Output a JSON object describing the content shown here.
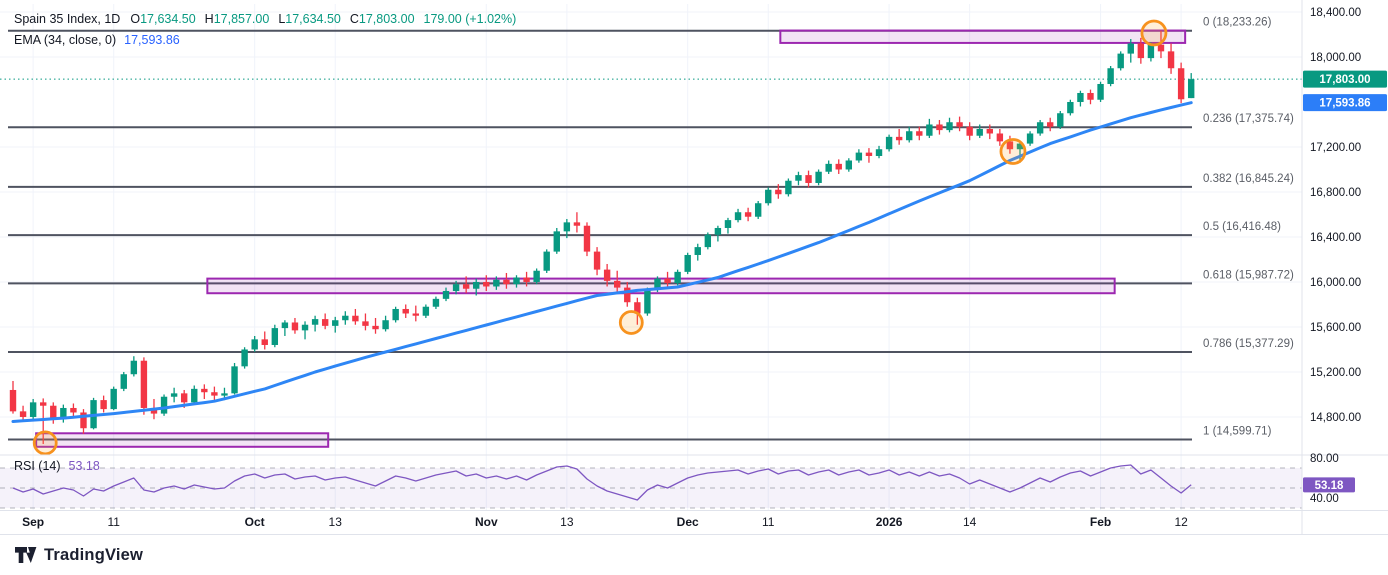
{
  "legend": {
    "title": "Spain 35 Index, 1D",
    "ohlc": [
      {
        "key": "O",
        "value": "17,634.50"
      },
      {
        "key": "H",
        "value": "17,857.00"
      },
      {
        "key": "L",
        "value": "17,634.50"
      },
      {
        "key": "C",
        "value": "17,803.00"
      }
    ],
    "change": "179.00 (+1.02%)",
    "ema_label": "EMA (34, close, 0)",
    "ema_value": "17,593.86",
    "rsi_label": "RSI (14)",
    "rsi_value": "53.18"
  },
  "watermark": {
    "brand": "TradingView"
  },
  "chart_data": {
    "type": "candlestick",
    "title": "Spain 35 Index, 1D",
    "legend_position": "top-left",
    "grid": true,
    "price_axis": {
      "ylim": [
        14462,
        18471
      ],
      "ticks": [
        {
          "label": "18,400.00",
          "value": 18400
        },
        {
          "label": "18,000.00",
          "value": 18000
        },
        {
          "label": "17,200.00",
          "value": 17200
        },
        {
          "label": "16,800.00",
          "value": 16800
        },
        {
          "label": "16,400.00",
          "value": 16400
        },
        {
          "label": "16,000.00",
          "value": 16000
        },
        {
          "label": "15,600.00",
          "value": 15600
        },
        {
          "label": "15,200.00",
          "value": 15200
        },
        {
          "label": "14,800.00",
          "value": 14800
        }
      ]
    },
    "badges": {
      "last_price": {
        "text": "17,803.00",
        "value": 17803
      },
      "ema": {
        "text": "17,593.86",
        "value": 17593.86
      },
      "rsi": {
        "text": "53.18",
        "value": 53.18
      }
    },
    "time_axis": {
      "labels": [
        {
          "text": "Sep",
          "i": 2,
          "major": true
        },
        {
          "text": "11",
          "i": 10,
          "major": false
        },
        {
          "text": "Oct",
          "i": 24,
          "major": true
        },
        {
          "text": "13",
          "i": 32,
          "major": false
        },
        {
          "text": "Nov",
          "i": 47,
          "major": true
        },
        {
          "text": "13",
          "i": 55,
          "major": false
        },
        {
          "text": "Dec",
          "i": 67,
          "major": true
        },
        {
          "text": "11",
          "i": 75,
          "major": false
        },
        {
          "text": "2026",
          "i": 87,
          "major": true
        },
        {
          "text": "14",
          "i": 95,
          "major": false
        },
        {
          "text": "Feb",
          "i": 108,
          "major": true
        },
        {
          "text": "12",
          "i": 116,
          "major": false
        }
      ]
    },
    "fib_levels": [
      {
        "label": "0 (18,233.26)",
        "price": 18233.26
      },
      {
        "label": "0.236 (17,375.74)",
        "price": 17375.74
      },
      {
        "label": "0.382 (16,845.24)",
        "price": 16845.24
      },
      {
        "label": "0.5 (16,416.48)",
        "price": 16416.48
      },
      {
        "label": "0.618 (15,987.72)",
        "price": 15987.72
      },
      {
        "label": "0.786 (15,377.29)",
        "price": 15377.29
      },
      {
        "label": "1 (14,599.71)",
        "price": 14599.71
      }
    ],
    "zones": [
      {
        "i1": 2.3,
        "i2": 31.3,
        "top": 14655,
        "bottom": 14535
      },
      {
        "i1": 19.3,
        "i2": 109.4,
        "top": 16030,
        "bottom": 15900
      },
      {
        "i1": 76.2,
        "i2": 116.4,
        "top": 18235,
        "bottom": 18125
      }
    ],
    "circles": [
      {
        "i": 3.2,
        "price": 14570,
        "r": 11
      },
      {
        "i": 61.4,
        "price": 15640,
        "r": 11
      },
      {
        "i": 99.3,
        "price": 17160,
        "r": 12
      },
      {
        "i": 113.3,
        "price": 18213,
        "r": 12
      }
    ],
    "candles": [
      [
        15040,
        15120,
        14830,
        14850
      ],
      [
        14850,
        14900,
        14760,
        14800
      ],
      [
        14800,
        14960,
        14780,
        14930
      ],
      [
        14930,
        14965,
        14560,
        14900
      ],
      [
        14900,
        14930,
        14740,
        14780
      ],
      [
        14780,
        14910,
        14750,
        14880
      ],
      [
        14880,
        14920,
        14790,
        14840
      ],
      [
        14840,
        14870,
        14650,
        14700
      ],
      [
        14700,
        14970,
        14690,
        14950
      ],
      [
        14950,
        14990,
        14840,
        14870
      ],
      [
        14870,
        15070,
        14860,
        15050
      ],
      [
        15050,
        15200,
        15030,
        15180
      ],
      [
        15180,
        15340,
        15160,
        15300
      ],
      [
        15300,
        15330,
        14820,
        14880
      ],
      [
        14880,
        14960,
        14780,
        14830
      ],
      [
        14830,
        15000,
        14810,
        14980
      ],
      [
        14980,
        15060,
        14930,
        15010
      ],
      [
        15010,
        15040,
        14880,
        14930
      ],
      [
        14930,
        15080,
        14920,
        15050
      ],
      [
        15050,
        15090,
        14960,
        15020
      ],
      [
        15020,
        15070,
        14940,
        14990
      ],
      [
        14990,
        15060,
        14950,
        15010
      ],
      [
        15010,
        15280,
        15000,
        15250
      ],
      [
        15250,
        15420,
        15230,
        15400
      ],
      [
        15400,
        15520,
        15380,
        15490
      ],
      [
        15490,
        15560,
        15400,
        15440
      ],
      [
        15440,
        15620,
        15420,
        15590
      ],
      [
        15590,
        15660,
        15520,
        15640
      ],
      [
        15640,
        15680,
        15540,
        15570
      ],
      [
        15570,
        15650,
        15490,
        15620
      ],
      [
        15620,
        15700,
        15560,
        15670
      ],
      [
        15670,
        15720,
        15580,
        15610
      ],
      [
        15610,
        15690,
        15550,
        15660
      ],
      [
        15660,
        15740,
        15620,
        15700
      ],
      [
        15700,
        15760,
        15620,
        15650
      ],
      [
        15650,
        15720,
        15570,
        15610
      ],
      [
        15610,
        15680,
        15540,
        15580
      ],
      [
        15580,
        15700,
        15560,
        15660
      ],
      [
        15660,
        15780,
        15640,
        15760
      ],
      [
        15760,
        15800,
        15680,
        15720
      ],
      [
        15720,
        15790,
        15650,
        15700
      ],
      [
        15700,
        15800,
        15680,
        15780
      ],
      [
        15780,
        15870,
        15760,
        15850
      ],
      [
        15850,
        15950,
        15830,
        15920
      ],
      [
        15920,
        16010,
        15890,
        15980
      ],
      [
        15980,
        16050,
        15900,
        15940
      ],
      [
        15940,
        16030,
        15880,
        16000
      ],
      [
        16000,
        16060,
        15920,
        15960
      ],
      [
        15960,
        16050,
        15930,
        16020
      ],
      [
        16020,
        16080,
        15940,
        15980
      ],
      [
        15980,
        16060,
        15950,
        16040
      ],
      [
        16040,
        16090,
        15960,
        16000
      ],
      [
        16000,
        16120,
        15980,
        16100
      ],
      [
        16100,
        16290,
        16080,
        16270
      ],
      [
        16270,
        16480,
        16250,
        16450
      ],
      [
        16450,
        16560,
        16390,
        16530
      ],
      [
        16530,
        16620,
        16440,
        16500
      ],
      [
        16500,
        16530,
        16230,
        16270
      ],
      [
        16270,
        16310,
        16060,
        16110
      ],
      [
        16110,
        16160,
        15960,
        16010
      ],
      [
        16010,
        16100,
        15900,
        15950
      ],
      [
        15950,
        16000,
        15780,
        15820
      ],
      [
        15820,
        15860,
        15620,
        15720
      ],
      [
        15720,
        15950,
        15700,
        15930
      ],
      [
        15930,
        16050,
        15910,
        16030
      ],
      [
        16030,
        16090,
        15950,
        15990
      ],
      [
        15990,
        16110,
        15970,
        16090
      ],
      [
        16090,
        16260,
        16070,
        16240
      ],
      [
        16240,
        16340,
        16190,
        16310
      ],
      [
        16310,
        16440,
        16290,
        16420
      ],
      [
        16420,
        16500,
        16360,
        16480
      ],
      [
        16480,
        16570,
        16430,
        16550
      ],
      [
        16550,
        16650,
        16530,
        16620
      ],
      [
        16620,
        16660,
        16540,
        16580
      ],
      [
        16580,
        16720,
        16560,
        16700
      ],
      [
        16700,
        16840,
        16680,
        16820
      ],
      [
        16820,
        16870,
        16740,
        16780
      ],
      [
        16780,
        16920,
        16760,
        16900
      ],
      [
        16900,
        16980,
        16860,
        16950
      ],
      [
        16950,
        16990,
        16840,
        16880
      ],
      [
        16880,
        17000,
        16860,
        16980
      ],
      [
        16980,
        17080,
        16960,
        17050
      ],
      [
        17050,
        17090,
        16960,
        17000
      ],
      [
        17000,
        17100,
        16980,
        17080
      ],
      [
        17080,
        17180,
        17060,
        17150
      ],
      [
        17150,
        17190,
        17060,
        17120
      ],
      [
        17120,
        17210,
        17100,
        17180
      ],
      [
        17180,
        17310,
        17160,
        17290
      ],
      [
        17290,
        17360,
        17220,
        17260
      ],
      [
        17260,
        17380,
        17240,
        17340
      ],
      [
        17340,
        17380,
        17260,
        17300
      ],
      [
        17300,
        17450,
        17280,
        17400
      ],
      [
        17400,
        17440,
        17310,
        17350
      ],
      [
        17350,
        17460,
        17330,
        17420
      ],
      [
        17420,
        17470,
        17340,
        17380
      ],
      [
        17380,
        17420,
        17260,
        17300
      ],
      [
        17300,
        17400,
        17280,
        17360
      ],
      [
        17360,
        17400,
        17270,
        17320
      ],
      [
        17320,
        17360,
        17210,
        17250
      ],
      [
        17250,
        17300,
        17140,
        17180
      ],
      [
        17180,
        17250,
        17060,
        17230
      ],
      [
        17230,
        17340,
        17210,
        17320
      ],
      [
        17320,
        17440,
        17300,
        17420
      ],
      [
        17420,
        17460,
        17340,
        17380
      ],
      [
        17380,
        17520,
        17360,
        17500
      ],
      [
        17500,
        17620,
        17480,
        17600
      ],
      [
        17600,
        17700,
        17560,
        17680
      ],
      [
        17680,
        17710,
        17580,
        17620
      ],
      [
        17620,
        17780,
        17600,
        17760
      ],
      [
        17760,
        17920,
        17740,
        17900
      ],
      [
        17900,
        18050,
        17880,
        18030
      ],
      [
        18030,
        18160,
        17950,
        18120
      ],
      [
        18120,
        18170,
        17940,
        17990
      ],
      [
        17990,
        18130,
        17960,
        18110
      ],
      [
        18110,
        18233,
        17990,
        18050
      ],
      [
        18050,
        18120,
        17850,
        17900
      ],
      [
        17900,
        17950,
        17590,
        17624
      ],
      [
        17634.5,
        17857,
        17634.5,
        17803
      ]
    ],
    "ema_anchors": [
      [
        0,
        14760
      ],
      [
        5,
        14790
      ],
      [
        10,
        14830
      ],
      [
        15,
        14880
      ],
      [
        20,
        14940
      ],
      [
        25,
        15050
      ],
      [
        30,
        15200
      ],
      [
        35,
        15330
      ],
      [
        40,
        15450
      ],
      [
        45,
        15570
      ],
      [
        50,
        15690
      ],
      [
        55,
        15810
      ],
      [
        58,
        15880
      ],
      [
        62,
        15925
      ],
      [
        66,
        15955
      ],
      [
        70,
        16040
      ],
      [
        75,
        16190
      ],
      [
        80,
        16350
      ],
      [
        85,
        16530
      ],
      [
        90,
        16720
      ],
      [
        95,
        16900
      ],
      [
        99,
        17080
      ],
      [
        103,
        17230
      ],
      [
        107,
        17350
      ],
      [
        111,
        17460
      ],
      [
        114,
        17530
      ],
      [
        117,
        17594
      ]
    ],
    "rsi": {
      "ylim": [
        28,
        83
      ],
      "levels": [
        70,
        50,
        30
      ],
      "axis_ticks": [
        {
          "label": "80.00",
          "value": 80
        },
        {
          "label": "40.00",
          "value": 40
        }
      ],
      "value": 53.18,
      "values": [
        50,
        46,
        49,
        44,
        47,
        50,
        48,
        42,
        49,
        47,
        52,
        56,
        60,
        48,
        46,
        50,
        52,
        49,
        53,
        51,
        49,
        50,
        57,
        62,
        64,
        60,
        63,
        64,
        59,
        61,
        62,
        58,
        60,
        61,
        58,
        55,
        52,
        57,
        62,
        60,
        57,
        60,
        63,
        65,
        67,
        62,
        64,
        60,
        62,
        59,
        62,
        58,
        63,
        67,
        71,
        72,
        69,
        59,
        52,
        47,
        44,
        41,
        38,
        48,
        53,
        50,
        55,
        60,
        63,
        65,
        66,
        67,
        68,
        64,
        67,
        69,
        64,
        67,
        68,
        63,
        66,
        68,
        63,
        66,
        68,
        63,
        65,
        68,
        63,
        66,
        62,
        66,
        62,
        64,
        60,
        54,
        58,
        54,
        50,
        46,
        50,
        55,
        60,
        56,
        61,
        65,
        67,
        62,
        66,
        70,
        72,
        73,
        64,
        68,
        60,
        52,
        45,
        53.18
      ]
    },
    "colors": {
      "up": "#089981",
      "down": "#f23645",
      "ema": "#2e86f5",
      "dotted_last_price": "#089981",
      "fib_line": "#4f5360",
      "fib_text": "#5a5e66",
      "zone_border": "#9c27b0",
      "zone_fill": "rgba(156,39,176,0.13)",
      "circle": "#f7921e",
      "circle_fill": "rgba(255,167,38,0.18)",
      "grid": "#f0f3fa",
      "axis_text": "#131722",
      "separator": "#e0e3eb",
      "rsi_line": "#7e57c2",
      "rsi_band_fill": "rgba(126,87,194,0.08)",
      "rsi_level_line": "#787b86",
      "price_badge_bg": "#089981",
      "ema_badge_bg": "#2c7ef8",
      "rsi_badge_bg": "#7e57c2",
      "badge_text": "#ffffff"
    }
  }
}
